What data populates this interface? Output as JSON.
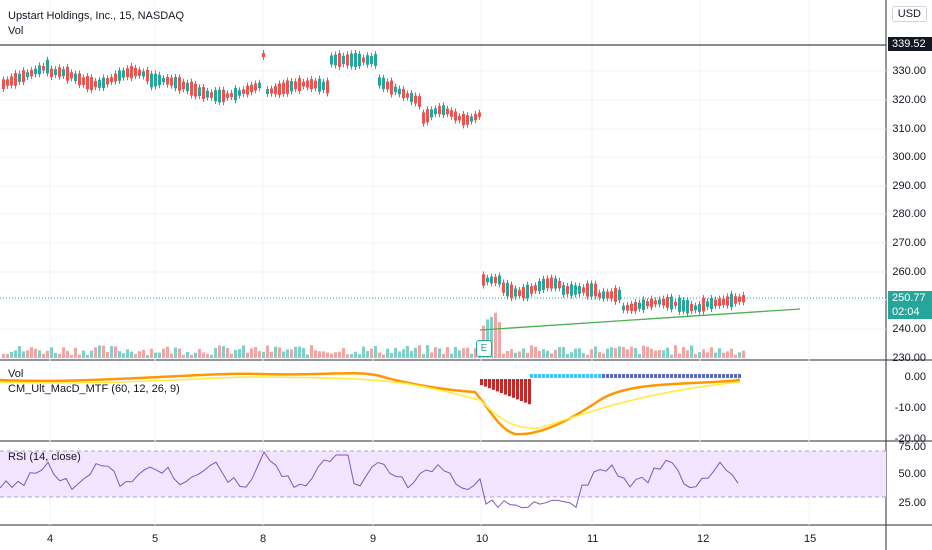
{
  "header": {
    "symbol_title": "Upstart Holdings, Inc., 15, NASDAQ",
    "vol_label": "Vol",
    "currency": "USD"
  },
  "price_axis": {
    "ticks": [
      "330.00",
      "320.00",
      "310.00",
      "300.00",
      "290.00",
      "280.00",
      "270.00",
      "260.00",
      "240.00",
      "230.00"
    ],
    "resistance_tag": "339.52",
    "last_price_tag": "250.77",
    "countdown_tag": "02:04"
  },
  "indicator_pane": {
    "vol_label": "Vol",
    "macd_label": "CM_Ult_MacD_MTF (60, 12, 26, 9)",
    "ticks": [
      "0.00",
      "-10.00",
      "-20.00"
    ]
  },
  "rsi_pane": {
    "label": "RSI (14, close)",
    "ticks": [
      "75.00",
      "50.00",
      "25.00"
    ]
  },
  "time_axis": {
    "labels": [
      "4",
      "5",
      "8",
      "9",
      "10",
      "11",
      "12",
      "15"
    ]
  },
  "earnings_marker": "E",
  "colors": {
    "up": "#26a69a",
    "down": "#ef5350",
    "trendline": "#4caf50",
    "rsi_line": "#7e57c2",
    "rsi_band": "#f3e5ff",
    "last_price_bg": "#26a69a",
    "resistance_bg": "#131722"
  }
}
